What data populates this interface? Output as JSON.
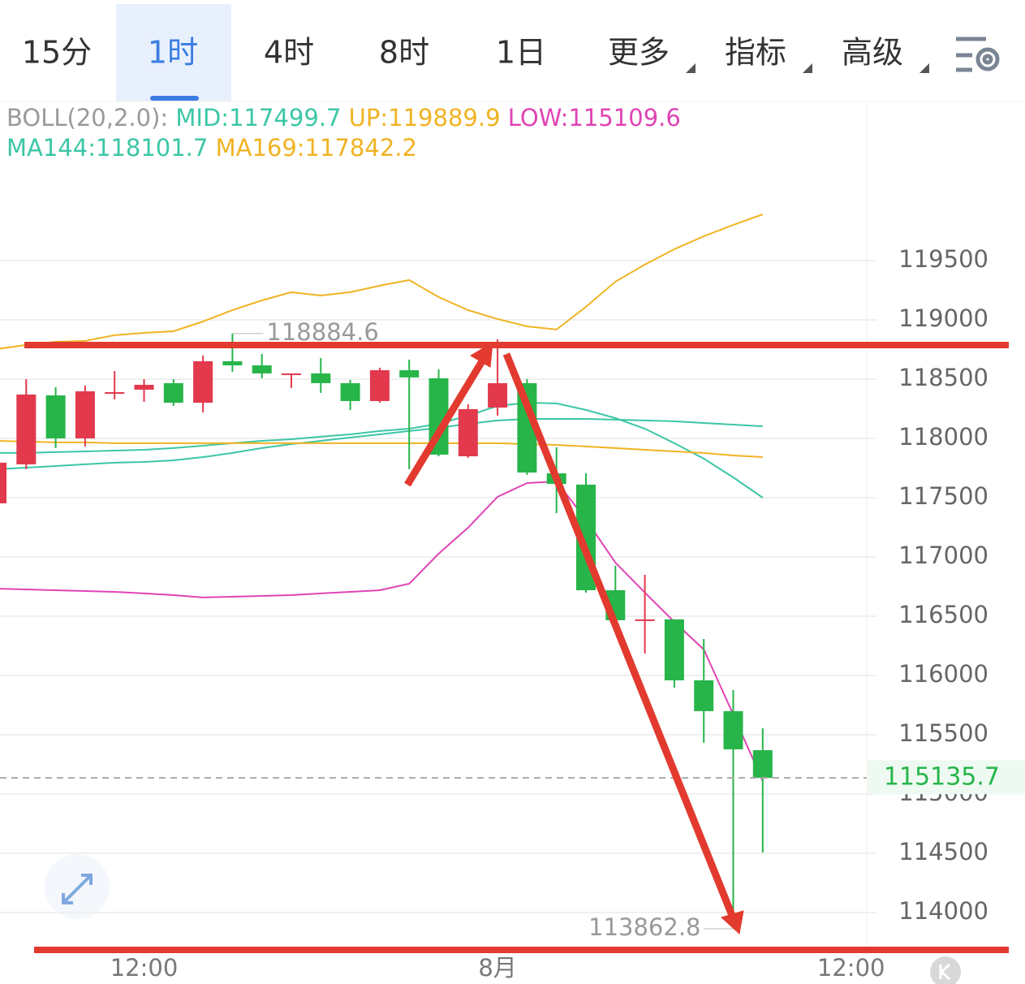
{
  "tabs": [
    "15分",
    "1时",
    "4时",
    "8时",
    "1日",
    "更多",
    "指标",
    "高级"
  ],
  "chart_data": {
    "type": "candlestick",
    "indicator_label": "BOLL(20,2.0):",
    "categories": [
      null,
      null,
      null,
      null,
      null,
      "12:00",
      null,
      null,
      null,
      null,
      null,
      null,
      null,
      null,
      null,
      null,
      null,
      "8月",
      null,
      null,
      null,
      null,
      null,
      null,
      null,
      null,
      null,
      null,
      null,
      "12:00"
    ],
    "open": [
      117452,
      117781,
      118363,
      118000,
      118384,
      118411,
      118466,
      118301,
      118651,
      118616,
      118545,
      118548,
      118466,
      118315,
      118575,
      118507,
      117849,
      118260,
      118466,
      117705,
      117610,
      116719,
      116466,
      116473,
      115959,
      115699,
      115370,
      null,
      null,
      null
    ],
    "high": [
      117800,
      118500,
      118432,
      118445,
      118568,
      118500,
      118500,
      118699,
      118884.6,
      118712,
      118548,
      118678,
      118493,
      118596,
      118664,
      118582,
      118288,
      118836,
      118500,
      117925,
      117705,
      116925,
      116849,
      116473,
      116308,
      115877,
      115555,
      null,
      null,
      null
    ],
    "low": [
      117450,
      117740,
      117918,
      117932,
      118329,
      118308,
      118274,
      118219,
      118562,
      118507,
      118425,
      118384,
      118240,
      118301,
      117740,
      117849,
      117836,
      118192,
      117692,
      117370,
      116699,
      116466,
      116185,
      115897,
      115432,
      113862.8,
      114507,
      null,
      null,
      null
    ],
    "close": [
      117795,
      118370,
      118000,
      118397,
      118390,
      118452,
      118301,
      118651,
      118616,
      118548,
      118548,
      118466,
      118315,
      118575,
      118514,
      117863,
      118247,
      118466,
      117712,
      117616,
      116719,
      116466,
      116473,
      115959,
      115699,
      115377,
      115135.7,
      null,
      null,
      null
    ],
    "up_color": "#e2394d",
    "down_color": "#27b54a",
    "series": [
      {
        "name": "MID:117499.7",
        "color": "#3cc6a6",
        "values": [
          117877,
          117877,
          117884,
          117890,
          117897,
          117904,
          117918,
          117938,
          117959,
          117979,
          117993,
          118014,
          118034,
          118062,
          118082,
          118123,
          118192,
          118274,
          118301,
          118295,
          118240,
          118171,
          118082,
          117959,
          117829,
          117671,
          117499.7,
          null,
          null,
          null
        ]
      },
      {
        "name": "UP:119889.9",
        "color": "#f0b323",
        "values": [
          118753,
          118788,
          118815,
          118822,
          118870,
          118890,
          118904,
          118986,
          119082,
          119164,
          119233,
          119205,
          119233,
          119288,
          119336,
          119192,
          119082,
          119007,
          118945,
          118918,
          119110,
          119322,
          119466,
          119596,
          119705,
          119801,
          119889.9,
          null,
          null,
          null
        ]
      },
      {
        "name": "LOW:115109.6",
        "color": "#e044b4",
        "values": [
          116733,
          116726,
          116719,
          116712,
          116705,
          116692,
          116678,
          116658,
          116664,
          116671,
          116678,
          116692,
          116705,
          116719,
          116774,
          117027,
          117247,
          117507,
          117623,
          117637,
          117315,
          116952,
          116699,
          116452,
          116219,
          115671,
          115109.6,
          null,
          null,
          null
        ]
      },
      {
        "name": "MA144:118101.7",
        "color": "#3cc6a6",
        "values": [
          117740,
          117753,
          117767,
          117781,
          117795,
          117801,
          117815,
          117842,
          117877,
          117918,
          117952,
          117979,
          118007,
          118034,
          118062,
          118089,
          118123,
          118151,
          118164,
          118164,
          118164,
          118158,
          118151,
          118144,
          118130,
          118116,
          118101.7,
          null,
          null,
          null
        ]
      },
      {
        "name": "MA169:117842.2",
        "color": "#f0b323",
        "values": [
          117979,
          117973,
          117966,
          117966,
          117959,
          117959,
          117959,
          117959,
          117959,
          117959,
          117959,
          117959,
          117959,
          117959,
          117959,
          117959,
          117959,
          117959,
          117952,
          117945,
          117932,
          117918,
          117904,
          117890,
          117877,
          117856,
          117842.2,
          null,
          null,
          null
        ]
      }
    ],
    "ylim": [
      113685,
      120842
    ],
    "yticks": [
      114000,
      114500,
      115000,
      115500,
      116000,
      116500,
      117000,
      117500,
      118000,
      118500,
      119000,
      119500
    ],
    "grid": true
  }
}
